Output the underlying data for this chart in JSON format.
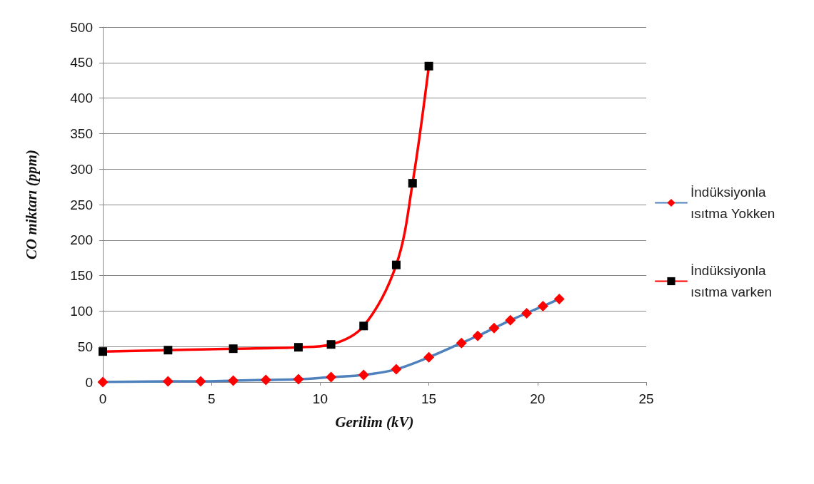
{
  "chart_data": {
    "type": "line",
    "xlabel": "Gerilim (kV)",
    "ylabel": "CO miktarı (ppm)",
    "xlim": [
      0,
      25
    ],
    "xticks": [
      0,
      5,
      10,
      15,
      20,
      25
    ],
    "ylim": [
      0,
      500
    ],
    "yticks": [
      0,
      50,
      100,
      150,
      200,
      250,
      300,
      350,
      400,
      450,
      500
    ],
    "grid": "y",
    "legend": "right",
    "series": [
      {
        "name": "İndüksiyonla ısıtma Yokken",
        "color": "#4f81bd",
        "marker": "diamond",
        "colors": [
          "#ff0000",
          "#ff0000",
          "#ff0000",
          "#ff0000",
          "#ff0000",
          "#ff0000",
          "#ff0000",
          "#ff0000",
          "#ff0000",
          "#ff0000",
          "#ff0000",
          "#ff0000",
          "#ff0000",
          "#ff0000",
          "#ff0000",
          "#ff0000",
          "#ff0000"
        ],
        "x": [
          0,
          3,
          4.5,
          6,
          7.5,
          9,
          10.5,
          12,
          13.5,
          15,
          16.5,
          17.25,
          18,
          18.75,
          19.5,
          20.25,
          21
        ],
        "values": [
          0,
          1,
          1,
          2,
          3,
          4,
          7,
          10,
          18,
          35,
          55,
          65,
          76,
          87,
          97,
          107,
          117
        ]
      },
      {
        "name": "İndüksiyonla ısıtma varken",
        "color": "#ff0000",
        "marker": "square",
        "colors": [
          "#000000",
          "#000000",
          "#000000",
          "#000000",
          "#000000",
          "#000000",
          "#000000",
          "#000000",
          "#000000"
        ],
        "x": [
          0,
          3,
          6,
          9,
          10.5,
          12,
          13.5,
          14.25,
          15
        ],
        "values": [
          43,
          45,
          47,
          49,
          53,
          79,
          165,
          280,
          445
        ]
      }
    ]
  }
}
